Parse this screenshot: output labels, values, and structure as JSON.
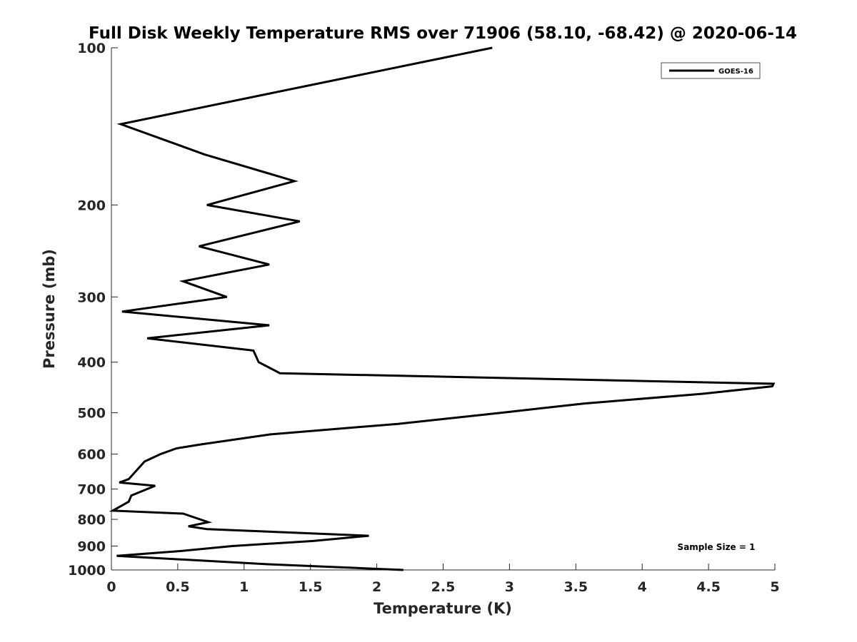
{
  "chart_data": {
    "type": "line",
    "title": "Full Disk Weekly Temperature RMS over 71906 (58.10, -68.42) @ 2020-06-14",
    "xlabel": "Temperature (K)",
    "ylabel": "Pressure (mb)",
    "xlim": [
      0,
      5
    ],
    "ylim": [
      100,
      1000
    ],
    "yscale": "log",
    "y_reversed": true,
    "grid": false,
    "legend_position": "top-right",
    "xticks": [
      0,
      0.5,
      1,
      1.5,
      2,
      2.5,
      3,
      3.5,
      4,
      4.5,
      5
    ],
    "xtick_labels": [
      "0",
      "0.5",
      "1",
      "1.5",
      "2",
      "2.5",
      "3",
      "3.5",
      "4",
      "4.5",
      "5"
    ],
    "yticks": [
      100,
      200,
      300,
      400,
      500,
      600,
      700,
      800,
      900,
      1000
    ],
    "ytick_labels": [
      "100",
      "200",
      "300",
      "400",
      "500",
      "600",
      "700",
      "800",
      "900",
      "1000"
    ],
    "series": [
      {
        "name": "GOES-16",
        "color": "#000000",
        "points": [
          [
            2.87,
            100
          ],
          [
            0.07,
            140
          ],
          [
            0.7,
            160
          ],
          [
            1.38,
            180
          ],
          [
            0.72,
            200
          ],
          [
            1.42,
            215
          ],
          [
            0.66,
            240
          ],
          [
            1.19,
            260
          ],
          [
            0.54,
            280
          ],
          [
            0.87,
            300
          ],
          [
            0.08,
            320
          ],
          [
            1.19,
            340
          ],
          [
            0.27,
            360
          ],
          [
            1.07,
            380
          ],
          [
            1.11,
            400
          ],
          [
            1.27,
            420
          ],
          [
            4.99,
            440
          ],
          [
            4.98,
            445
          ],
          [
            4.45,
            460
          ],
          [
            3.56,
            480
          ],
          [
            2.94,
            500
          ],
          [
            2.16,
            525
          ],
          [
            1.2,
            550
          ],
          [
            0.67,
            575
          ],
          [
            0.49,
            585
          ],
          [
            0.37,
            600
          ],
          [
            0.25,
            620
          ],
          [
            0.13,
            670
          ],
          [
            0.06,
            680
          ],
          [
            0.33,
            690
          ],
          [
            0.15,
            720
          ],
          [
            0.13,
            740
          ],
          [
            0.01,
            770
          ],
          [
            0.54,
            780
          ],
          [
            0.73,
            810
          ],
          [
            0.58,
            825
          ],
          [
            0.72,
            835
          ],
          [
            1.94,
            860
          ],
          [
            1.52,
            880
          ],
          [
            0.91,
            900
          ],
          [
            0.52,
            920
          ],
          [
            0.04,
            940
          ],
          [
            1.18,
            975
          ],
          [
            2.2,
            1000
          ]
        ]
      }
    ],
    "annotations": [
      {
        "text": "Sample Size = 1",
        "position": "bottom-right"
      }
    ]
  }
}
